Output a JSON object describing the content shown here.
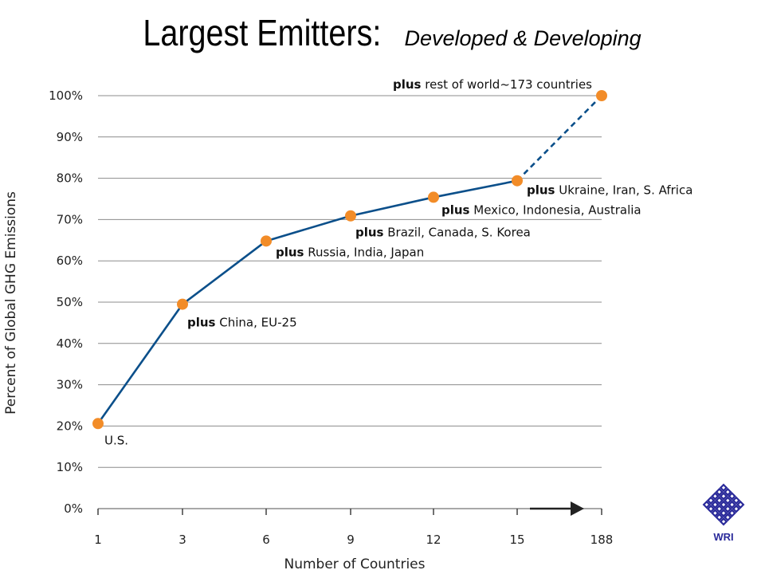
{
  "title": {
    "main": "Largest Emitters:",
    "sub": "Developed & Developing"
  },
  "logo": {
    "text": "WRI",
    "color": "#2a2a9a"
  },
  "colors": {
    "line": "#0b4f8a",
    "marker": "#f28c28",
    "grid": "#8c8c8c",
    "arrow": "#222222"
  },
  "chart_data": {
    "type": "line",
    "title": "Largest Emitters: Developed & Developing",
    "xlabel": "Number of Countries",
    "ylabel": "Percent of Global GHG Emissions",
    "x_ticks": [
      "1",
      "3",
      "6",
      "9",
      "12",
      "15",
      "188"
    ],
    "y_ticks": [
      "0%",
      "10%",
      "20%",
      "30%",
      "40%",
      "50%",
      "60%",
      "70%",
      "80%",
      "90%",
      "100%"
    ],
    "ylim": [
      0,
      100
    ],
    "grid": "horizontal",
    "points": [
      {
        "x": "1",
        "y": 20.6,
        "plus": "",
        "label": "U.S.",
        "line": "solid"
      },
      {
        "x": "3",
        "y": 49.5,
        "plus": "plus",
        "label": " China, EU-25",
        "line": "solid"
      },
      {
        "x": "6",
        "y": 64.8,
        "plus": "plus",
        "label": " Russia, India, Japan",
        "line": "solid"
      },
      {
        "x": "9",
        "y": 70.9,
        "plus": "plus",
        "label": " Brazil, Canada, S. Korea",
        "line": "solid"
      },
      {
        "x": "12",
        "y": 75.4,
        "plus": "plus",
        "label": " Mexico, Indonesia, Australia",
        "line": "solid"
      },
      {
        "x": "15",
        "y": 79.4,
        "plus": "plus",
        "label": " Ukraine, Iran, S. Africa",
        "line": "solid"
      },
      {
        "x": "188",
        "y": 100,
        "plus": "plus",
        "label": " rest of world~173 countries",
        "line": "dashed"
      }
    ]
  }
}
